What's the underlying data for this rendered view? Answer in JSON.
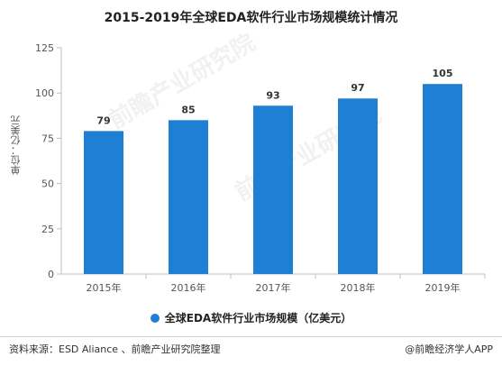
{
  "chart_data": {
    "type": "bar",
    "title": "2015-2019年全球EDA软件行业市场规模统计情况",
    "ylabel": "单位：亿美元",
    "xlabel": "",
    "categories": [
      "2015年",
      "2016年",
      "2017年",
      "2018年",
      "2019年"
    ],
    "series": [
      {
        "name": "全球EDA软件行业市场规模（亿美元）",
        "values": [
          79,
          85,
          93,
          97,
          105
        ],
        "color": "#1f7fd4"
      }
    ],
    "ylim": [
      0,
      125
    ],
    "yticks": [
      0,
      25,
      50,
      75,
      100,
      125
    ],
    "grid": false,
    "legend_position": "bottom"
  },
  "footer": {
    "source": "资料来源：ESD Aliance 、前瞻产业研究院整理",
    "credit": "@前瞻经济学人APP"
  },
  "watermark": {
    "text": "前瞻产业研究院"
  }
}
